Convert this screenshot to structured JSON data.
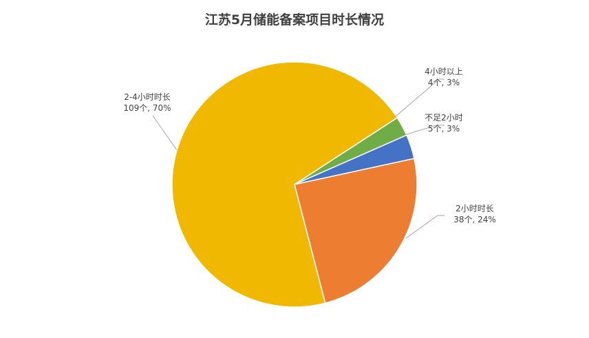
{
  "chart_data": {
    "type": "pie",
    "title": "江苏5月储能备案项目时长情况",
    "slices": [
      {
        "name": "4小时以上",
        "value": 4,
        "percent_label": "4个, 3%",
        "color": "#70ad47"
      },
      {
        "name": "不足2小时",
        "value": 5,
        "percent_label": "5个, 3%",
        "color": "#4472c4"
      },
      {
        "name": "2小时时长",
        "value": 38,
        "percent_label": "38个, 24%",
        "color": "#ed7d31"
      },
      {
        "name": "2-4小时时长",
        "value": 109,
        "percent_label": "109个, 70%",
        "color": "#f0b800"
      }
    ],
    "legend": "none",
    "data_labels": "outside-with-leader-lines"
  }
}
